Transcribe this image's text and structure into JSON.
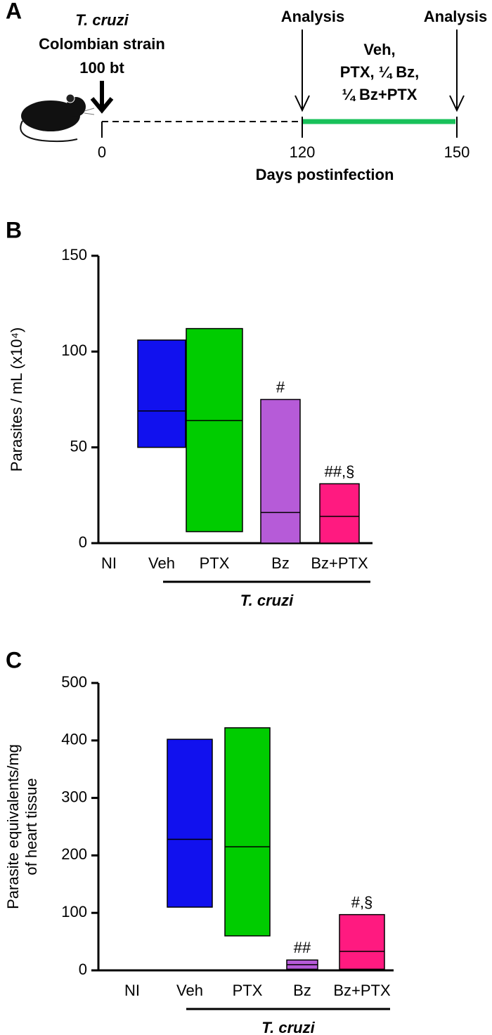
{
  "timeline": {
    "panel": "A",
    "inoculum": [
      "T. cruzi",
      "Colombian strain",
      "100 bt"
    ],
    "analysis": [
      "Analysis",
      "Analysis"
    ],
    "treatment": [
      "Veh,",
      "PTX, ¼ Bz,",
      "¼ Bz+PTX"
    ],
    "days": [
      0,
      120,
      150
    ],
    "xlabel": "Days postinfection"
  },
  "chart_data": [
    {
      "type": "range-bar",
      "panel": "B",
      "ylabel": [
        "Parasites / mL (x10⁴)"
      ],
      "categories": [
        "NI",
        "Veh",
        "PTX",
        "Bz",
        "Bz+PTX"
      ],
      "colors": [
        null,
        "#1111ee",
        "#00cc00",
        "#b65bd8",
        "#ff1a80"
      ],
      "low": [
        null,
        50,
        6,
        0,
        0
      ],
      "median": [
        null,
        69,
        64,
        16,
        14
      ],
      "high": [
        null,
        106,
        112,
        75,
        31
      ],
      "annotations": [
        null,
        null,
        null,
        "#",
        "##,§"
      ],
      "group_label": "T. cruzi",
      "ylim": [
        0,
        150
      ],
      "yticks": [
        0,
        50,
        100,
        150
      ]
    },
    {
      "type": "range-bar",
      "panel": "C",
      "ylabel": [
        "Parasite equivalents/mg",
        "of heart tissue"
      ],
      "categories": [
        "NI",
        "Veh",
        "PTX",
        "Bz",
        "Bz+PTX"
      ],
      "colors": [
        null,
        "#1111ee",
        "#00cc00",
        "#b65bd8",
        "#ff1a80"
      ],
      "low": [
        null,
        110,
        60,
        2,
        2
      ],
      "median": [
        null,
        228,
        215,
        10,
        33
      ],
      "high": [
        null,
        402,
        422,
        18,
        97
      ],
      "annotations": [
        null,
        null,
        null,
        "##",
        "#,§"
      ],
      "group_label": "T. cruzi",
      "ylim": [
        0,
        500
      ],
      "yticks": [
        0,
        100,
        200,
        300,
        400,
        500
      ]
    }
  ]
}
